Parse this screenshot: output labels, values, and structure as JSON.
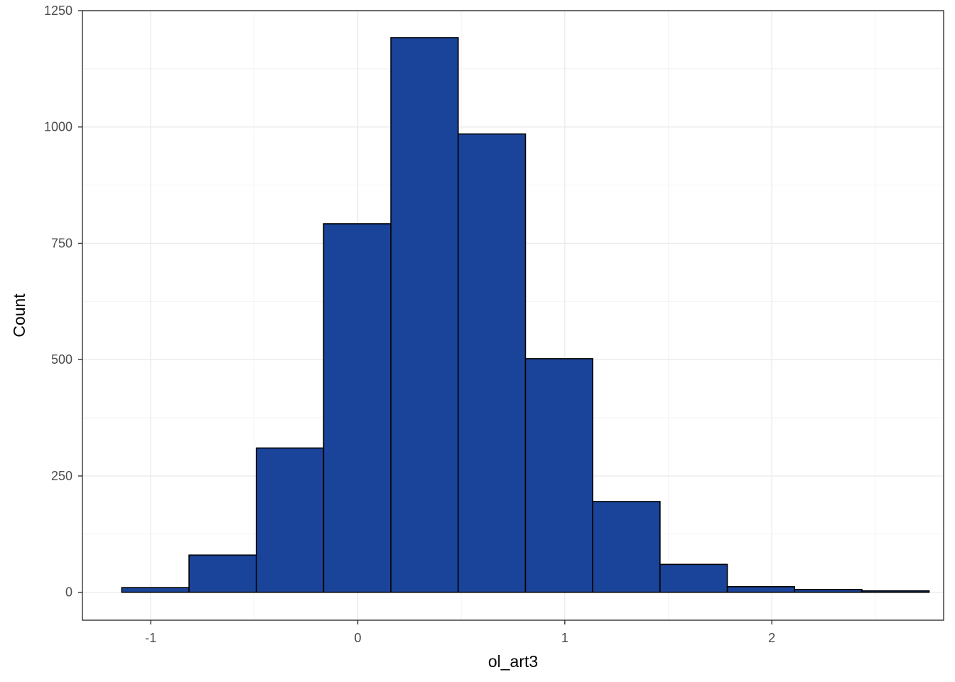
{
  "chart_data": {
    "type": "bar",
    "subtype": "histogram",
    "xlabel": "ol_art3",
    "ylabel": "Count",
    "xlim": [
      -1.33,
      2.83
    ],
    "ylim": [
      -60,
      1250
    ],
    "x_ticks": [
      -1,
      0,
      1,
      2
    ],
    "x_tick_labels": [
      "-1",
      "0",
      "1",
      "2"
    ],
    "y_ticks": [
      0,
      250,
      500,
      750,
      1000,
      1250
    ],
    "y_tick_labels": [
      "0",
      "250",
      "500",
      "750",
      "1000",
      "1250"
    ],
    "bins": [
      {
        "x0": -1.14,
        "x1": -0.815,
        "count": 10
      },
      {
        "x0": -0.815,
        "x1": -0.49,
        "count": 80
      },
      {
        "x0": -0.49,
        "x1": -0.165,
        "count": 310
      },
      {
        "x0": -0.165,
        "x1": 0.16,
        "count": 792
      },
      {
        "x0": 0.16,
        "x1": 0.485,
        "count": 1192
      },
      {
        "x0": 0.485,
        "x1": 0.81,
        "count": 985
      },
      {
        "x0": 0.81,
        "x1": 1.135,
        "count": 502
      },
      {
        "x0": 1.135,
        "x1": 1.46,
        "count": 195
      },
      {
        "x0": 1.46,
        "x1": 1.785,
        "count": 60
      },
      {
        "x0": 1.785,
        "x1": 2.11,
        "count": 12
      },
      {
        "x0": 2.11,
        "x1": 2.435,
        "count": 6
      },
      {
        "x0": 2.435,
        "x1": 2.76,
        "count": 3
      }
    ],
    "fill_color": "#1a4499",
    "outline_color": "#000000",
    "grid": true,
    "legend": "none"
  }
}
